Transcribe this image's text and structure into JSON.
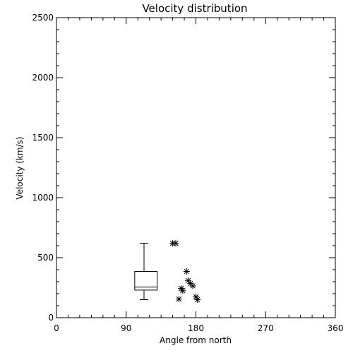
{
  "chart_data": {
    "type": "scatter",
    "title": "Velocity distribution",
    "xlabel": "Angle from north",
    "ylabel": "Velocity (km/s)",
    "xlim": [
      0,
      360
    ],
    "ylim": [
      0,
      2500
    ],
    "x_ticks": [
      0,
      90,
      180,
      270,
      360
    ],
    "y_ticks": [
      0,
      500,
      1000,
      1500,
      2000,
      2500
    ],
    "grid": false,
    "colors": {
      "marks": "#000000",
      "background": "#ffffff"
    },
    "box": {
      "x_center": 113,
      "x_range": [
        101,
        130
      ],
      "whisker_low": 150,
      "q1": 230,
      "median": 255,
      "q3": 385,
      "whisker_high": 620
    },
    "points": [
      {
        "x": 150,
        "y": 620
      },
      {
        "x": 154,
        "y": 620
      },
      {
        "x": 168,
        "y": 385
      },
      {
        "x": 170,
        "y": 310
      },
      {
        "x": 173,
        "y": 285
      },
      {
        "x": 176,
        "y": 265
      },
      {
        "x": 161,
        "y": 245
      },
      {
        "x": 163,
        "y": 225
      },
      {
        "x": 158,
        "y": 155
      },
      {
        "x": 180,
        "y": 175
      },
      {
        "x": 182,
        "y": 150
      }
    ]
  }
}
